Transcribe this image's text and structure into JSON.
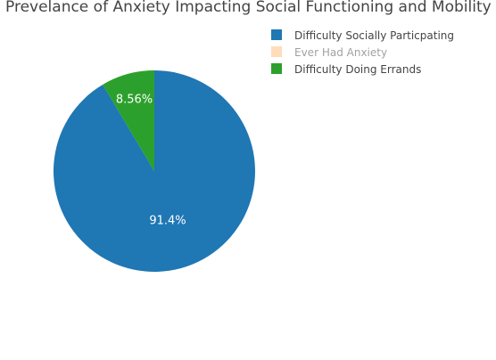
{
  "chart_data": {
    "type": "pie",
    "title": "Prevelance of Anxiety Impacting Social Functioning and Mobility",
    "labels": [
      "Difficulty Socially Particpating",
      "Ever Had Anxiety",
      "Difficulty Doing Errands"
    ],
    "values": [
      91.44,
      0,
      8.56
    ],
    "text_labels": [
      "91.4%",
      "",
      "8.56%"
    ],
    "colors": [
      "#1f77b4",
      "#ffbb78",
      "#2ca02c"
    ],
    "legend_hidden": [
      false,
      true,
      false
    ],
    "legend_position": "top-right",
    "start_angle_deg": 90,
    "direction": "clockwise"
  }
}
